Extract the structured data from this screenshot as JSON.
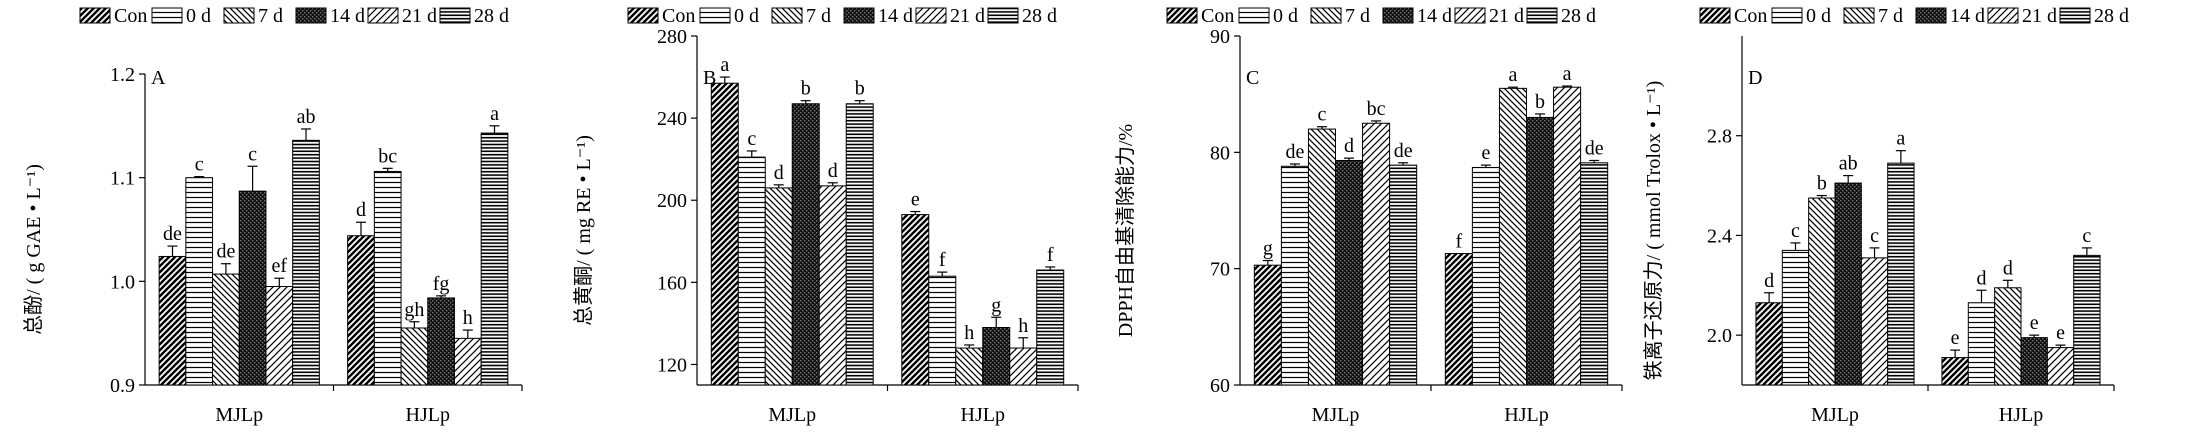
{
  "legend": [
    "Con",
    "0 d",
    "7 d",
    "14 d",
    "21 d",
    "28 d"
  ],
  "chart_data": [
    {
      "type": "bar",
      "panel_label": "A",
      "ylabel": "总酚/ ( g GAE • L⁻¹)",
      "categories": [
        "MJLp",
        "HJLp"
      ],
      "ylim": [
        0.9,
        1.2
      ],
      "yticks": [
        "0.9",
        "1.0",
        "1.1",
        "1.2"
      ],
      "ytick_values": [
        0.9,
        1.0,
        1.1,
        1.2
      ],
      "series": [
        {
          "name": "Con",
          "values": [
            1.024,
            1.044
          ],
          "errors": [
            0.01,
            0.013
          ],
          "letters": [
            "de",
            "d"
          ]
        },
        {
          "name": "0 d",
          "values": [
            1.1,
            1.106
          ],
          "errors": [
            0.001,
            0.003
          ],
          "letters": [
            "c",
            "bc"
          ]
        },
        {
          "name": "7 d",
          "values": [
            1.007,
            0.955
          ],
          "errors": [
            0.01,
            0.006
          ],
          "letters": [
            "de",
            "gh"
          ]
        },
        {
          "name": "14 d",
          "values": [
            1.087,
            0.984
          ],
          "errors": [
            0.024,
            0.002
          ],
          "letters": [
            "c",
            "fg"
          ]
        },
        {
          "name": "21 d",
          "values": [
            0.995,
            0.945
          ],
          "errors": [
            0.008,
            0.008
          ],
          "letters": [
            "ef",
            "h"
          ]
        },
        {
          "name": "28 d",
          "values": [
            1.136,
            1.143
          ],
          "errors": [
            0.011,
            0.007
          ],
          "letters": [
            "ab",
            "a"
          ]
        }
      ]
    },
    {
      "type": "bar",
      "panel_label": "B",
      "ylabel": "总黄酮/ ( mg RE • L⁻¹)",
      "categories": [
        "MJLp",
        "HJLp"
      ],
      "ylim": [
        110,
        280
      ],
      "yticks": [
        "120",
        "160",
        "200",
        "240",
        "280"
      ],
      "ytick_values": [
        120,
        160,
        200,
        240,
        280
      ],
      "series": [
        {
          "name": "Con",
          "values": [
            257,
            193
          ],
          "errors": [
            3,
            1.5
          ],
          "letters": [
            "a",
            "e"
          ]
        },
        {
          "name": "0 d",
          "values": [
            221,
            163
          ],
          "errors": [
            3,
            2
          ],
          "letters": [
            "c",
            "f"
          ]
        },
        {
          "name": "7 d",
          "values": [
            206,
            128
          ],
          "errors": [
            1.5,
            1.5
          ],
          "letters": [
            "d",
            "h"
          ]
        },
        {
          "name": "14 d",
          "values": [
            247,
            138
          ],
          "errors": [
            1.5,
            5
          ],
          "letters": [
            "b",
            "g"
          ]
        },
        {
          "name": "21 d",
          "values": [
            207,
            128
          ],
          "errors": [
            1.5,
            5
          ],
          "letters": [
            "d",
            "h"
          ]
        },
        {
          "name": "28 d",
          "values": [
            247,
            166
          ],
          "errors": [
            1.5,
            1.5
          ],
          "letters": [
            "b",
            "f"
          ]
        }
      ]
    },
    {
      "type": "bar",
      "panel_label": "C",
      "ylabel": "DPPH自由基清除能力/%",
      "categories": [
        "MJLp",
        "HJLp"
      ],
      "ylim": [
        60,
        90
      ],
      "yticks": [
        "60",
        "70",
        "80",
        "90"
      ],
      "ytick_values": [
        60,
        70,
        80,
        90
      ],
      "series": [
        {
          "name": "Con",
          "values": [
            70.3,
            71.3
          ],
          "errors": [
            0.4,
            0.0
          ],
          "letters": [
            "g",
            "f"
          ]
        },
        {
          "name": "0 d",
          "values": [
            78.8,
            78.7
          ],
          "errors": [
            0.2,
            0.2
          ],
          "letters": [
            "de",
            "e"
          ]
        },
        {
          "name": "7 d",
          "values": [
            82.0,
            85.5
          ],
          "errors": [
            0.2,
            0.1
          ],
          "letters": [
            "c",
            "a"
          ]
        },
        {
          "name": "14 d",
          "values": [
            79.3,
            83.0
          ],
          "errors": [
            0.2,
            0.3
          ],
          "letters": [
            "d",
            "b"
          ]
        },
        {
          "name": "21 d",
          "values": [
            82.5,
            85.6
          ],
          "errors": [
            0.2,
            0.1
          ],
          "letters": [
            "bc",
            "a"
          ]
        },
        {
          "name": "28 d",
          "values": [
            78.9,
            79.1
          ],
          "errors": [
            0.2,
            0.2
          ],
          "letters": [
            "de",
            "de"
          ]
        }
      ]
    },
    {
      "type": "bar",
      "panel_label": "D",
      "ylabel": "铁离子还原力/ ( mmol Trolox • L⁻¹)",
      "categories": [
        "MJLp",
        "HJLp"
      ],
      "ylim": [
        1.8,
        3.2
      ],
      "yticks": [
        "2.0",
        "2.4",
        "2.8"
      ],
      "ytick_values": [
        2.0,
        2.4,
        2.8
      ],
      "series": [
        {
          "name": "Con",
          "values": [
            2.13,
            1.91
          ],
          "errors": [
            0.04,
            0.03
          ],
          "letters": [
            "d",
            "e"
          ]
        },
        {
          "name": "0 d",
          "values": [
            2.34,
            2.13
          ],
          "errors": [
            0.03,
            0.05
          ],
          "letters": [
            "c",
            "d"
          ]
        },
        {
          "name": "7 d",
          "values": [
            2.55,
            2.19
          ],
          "errors": [
            0.01,
            0.03
          ],
          "letters": [
            "b",
            "d"
          ]
        },
        {
          "name": "14 d",
          "values": [
            2.61,
            1.99
          ],
          "errors": [
            0.03,
            0.01
          ],
          "letters": [
            "ab",
            "e"
          ]
        },
        {
          "name": "21 d",
          "values": [
            2.31,
            1.95
          ],
          "errors": [
            0.04,
            0.01
          ],
          "letters": [
            "c",
            "e"
          ]
        },
        {
          "name": "28 d",
          "values": [
            2.69,
            2.32
          ],
          "errors": [
            0.05,
            0.03
          ],
          "letters": [
            "a",
            "c"
          ]
        }
      ]
    }
  ]
}
